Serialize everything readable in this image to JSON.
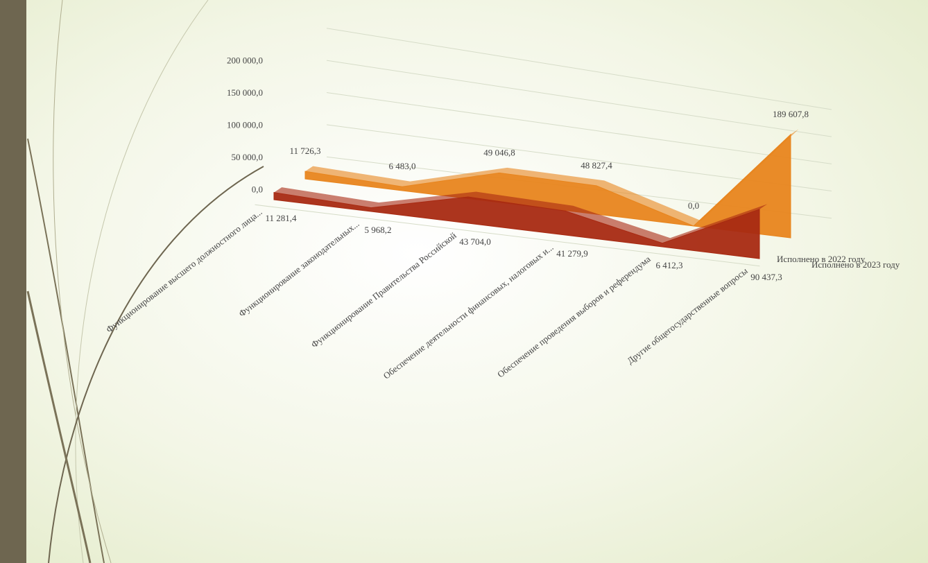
{
  "chart_data": {
    "type": "area3d",
    "categories": [
      "Функционирование высшего должностного лица...",
      "Функционирование законодательных...",
      "Функционирование Правительства Российской",
      "Обеспечение деятельности финансовых, налоговых и...",
      "Обеспечение проведения выборов и референдума",
      "Другие общегосударственные вопросы"
    ],
    "series": [
      {
        "name": "Исполнено в 2023 году",
        "color": "#e8851e",
        "values": [
          11726.3,
          6483.0,
          49046.8,
          48827.4,
          0.0,
          189607.8
        ],
        "value_labels": [
          "11 726,3",
          "6 483,0",
          "49 046,8",
          "48 827,4",
          "0,0",
          "189 607,8"
        ]
      },
      {
        "name": "Исполнено в 2022 году",
        "color": "#a82a12",
        "values": [
          11281.4,
          5968.2,
          43704.0,
          41279.9,
          6412.3,
          90437.3
        ],
        "value_labels": [
          "11 281,4",
          "5 968,2",
          "43 704,0",
          "41 279,9",
          "6 412,3",
          "90 437,3"
        ]
      }
    ],
    "ylim": [
      0,
      200000
    ],
    "yticks": [
      {
        "value": 0,
        "label": "0,0"
      },
      {
        "value": 50000,
        "label": "50 000,0"
      },
      {
        "value": 100000,
        "label": "100 000,0"
      },
      {
        "value": 150000,
        "label": "150 000,0"
      },
      {
        "value": 200000,
        "label": "200 000,0"
      }
    ],
    "grid": true
  }
}
